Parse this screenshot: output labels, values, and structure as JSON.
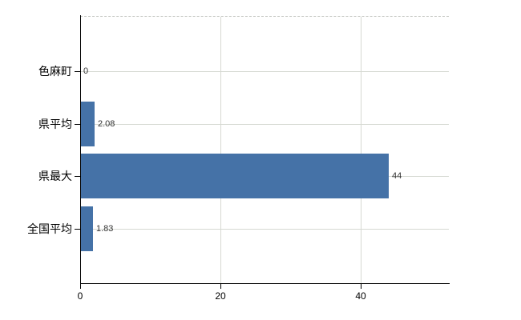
{
  "chart": {
    "background": "#ffffff"
  },
  "chart_data": {
    "type": "bar",
    "orientation": "horizontal",
    "title": "",
    "categories": [
      "色麻町",
      "県平均",
      "県最大",
      "全国平均"
    ],
    "values": [
      0,
      2.08,
      44,
      1.83
    ],
    "value_labels": [
      "0",
      "2.08",
      "44",
      "1.83"
    ],
    "x_ticks": [
      0,
      20,
      40
    ],
    "x_tick_labels": [
      "0",
      "20",
      "40"
    ],
    "xlim": [
      0,
      52.6
    ],
    "grid": true,
    "legend": false,
    "bar_color": "#4572a7",
    "grid_color": "#d6d9d2",
    "axis_color": "#000000",
    "value_label_color": "#333333"
  }
}
